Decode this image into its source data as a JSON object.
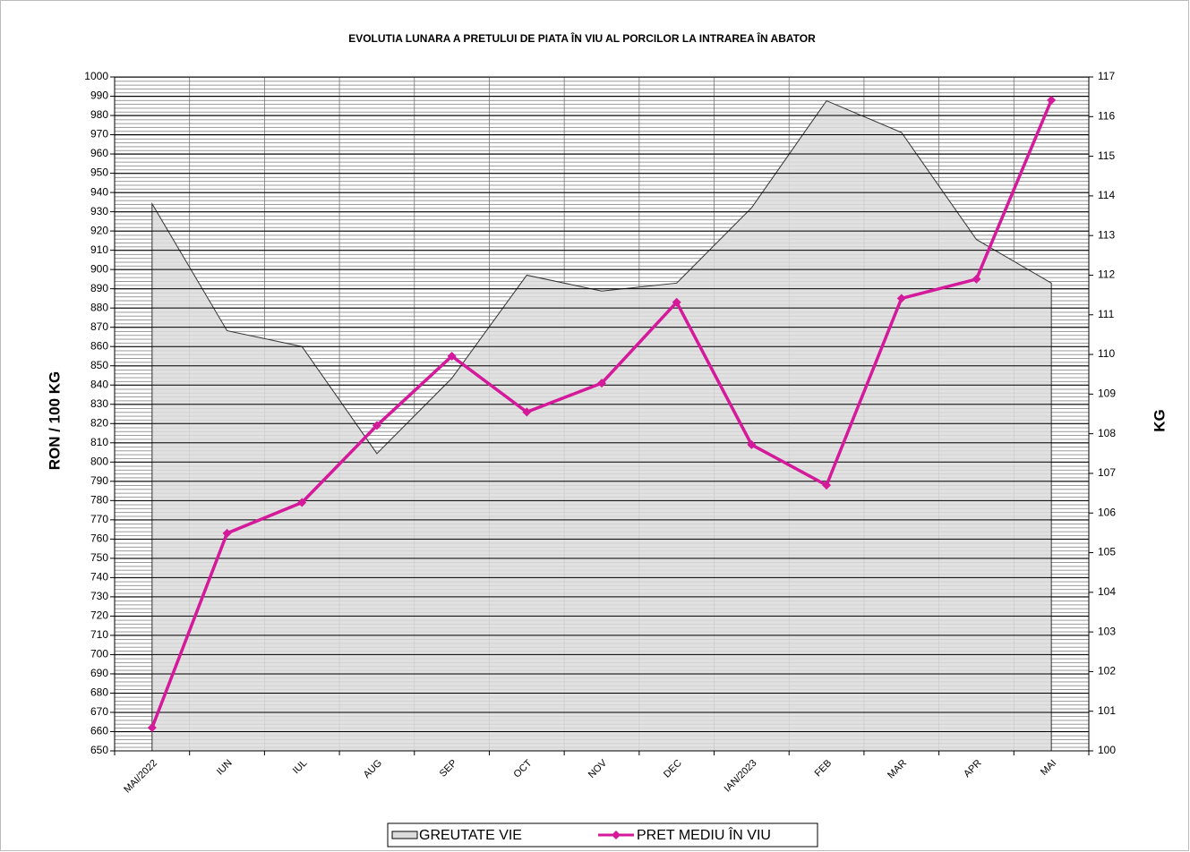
{
  "chart_data": {
    "type": "line",
    "title": "EVOLUTIA  LUNARA  A PRETULUI   DE PIATA  ÎN VIU AL PORCILOR   LA INTRAREA  ÎN ABATOR",
    "y_label": "RON / 100 KG",
    "y2_label": "KG",
    "categories": [
      "MAI/2022",
      "IUN",
      "IUL",
      "AUG",
      "SEP",
      "OCT",
      "NOV",
      "DEC",
      "IAN/2023",
      "FEB",
      "MAR",
      "APR",
      "MAI"
    ],
    "series": [
      {
        "name": "GREUTATE VIE",
        "type": "area",
        "axis": "y2",
        "color": "#dcdcdc",
        "values": [
          113.8,
          110.6,
          110.2,
          107.5,
          109.4,
          112.0,
          111.6,
          111.8,
          113.7,
          116.4,
          115.6,
          112.9,
          111.8
        ]
      },
      {
        "name": "PRET MEDIU ÎN VIU",
        "type": "line",
        "color": "#d4199b",
        "values": [
          662,
          763,
          779,
          819,
          855,
          826,
          841,
          883,
          809,
          788,
          885,
          895,
          988
        ]
      }
    ],
    "ylim": [
      650,
      1000
    ],
    "yticks": [
      650,
      660,
      670,
      680,
      690,
      700,
      710,
      720,
      730,
      740,
      750,
      760,
      770,
      780,
      790,
      800,
      810,
      820,
      830,
      840,
      850,
      860,
      870,
      880,
      890,
      900,
      910,
      920,
      930,
      940,
      950,
      960,
      970,
      980,
      990,
      1000
    ],
    "y2lim": [
      100,
      117
    ],
    "y2ticks": [
      100,
      101,
      102,
      103,
      104,
      105,
      106,
      107,
      108,
      109,
      110,
      111,
      112,
      113,
      114,
      115,
      116,
      117
    ],
    "grid": true
  }
}
